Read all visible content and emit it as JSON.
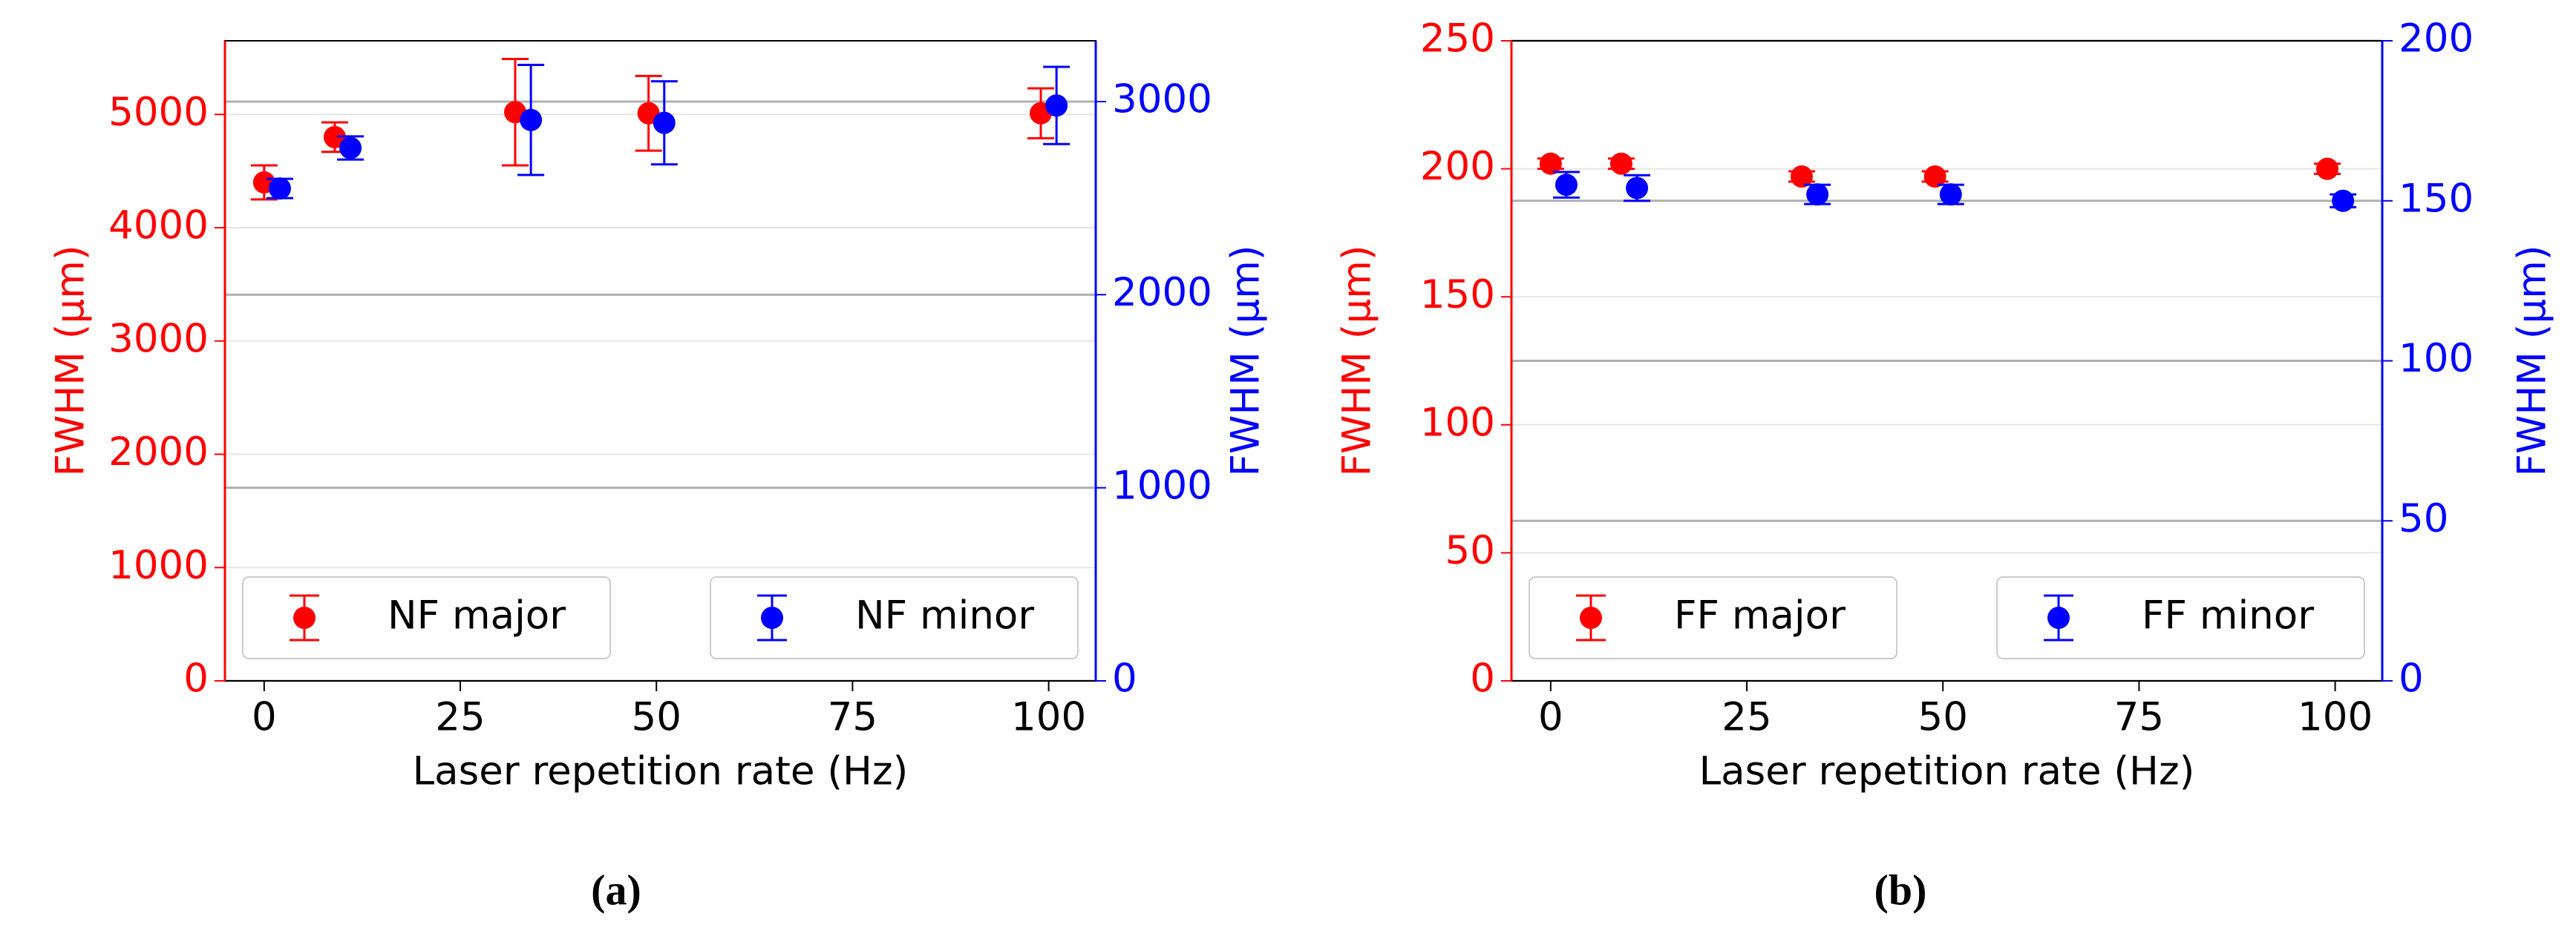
{
  "chart_data": [
    {
      "type": "scatter",
      "caption": "(a)",
      "xlabel": "Laser repetition rate (Hz)",
      "ylabel": "FWHM (μm)",
      "y2label": "FWHM (μm)",
      "xlim": [
        -5,
        106
      ],
      "xticks": [
        0,
        25,
        50,
        75,
        100
      ],
      "ylim": [
        0,
        5650
      ],
      "yticks": [
        0,
        1000,
        2000,
        3000,
        4000,
        5000
      ],
      "ycolor": "#ff0000",
      "y2lim": [
        0,
        3315
      ],
      "y2ticks": [
        0,
        1000,
        2000,
        3000
      ],
      "y2color": "#0000ff",
      "grid": true,
      "series": [
        {
          "name": "NF major",
          "color": "#ff0000",
          "axis": "y",
          "x": [
            0,
            9,
            32,
            49,
            99
          ],
          "values": [
            4400,
            4800,
            5020,
            5010,
            5010
          ],
          "errors": [
            150,
            130,
            470,
            330,
            220
          ]
        },
        {
          "name": "NF minor",
          "color": "#0000ff",
          "axis": "y2",
          "x": [
            2,
            11,
            34,
            51,
            101
          ],
          "values": [
            2550,
            2760,
            2905,
            2890,
            2980
          ],
          "errors": [
            50,
            60,
            285,
            215,
            200
          ]
        }
      ]
    },
    {
      "type": "scatter",
      "caption": "(b)",
      "xlabel": "Laser repetition rate (Hz)",
      "ylabel": "FWHM (μm)",
      "y2label": "FWHM (μm)",
      "xlim": [
        -5,
        106
      ],
      "xticks": [
        0,
        25,
        50,
        75,
        100
      ],
      "ylim": [
        0,
        250
      ],
      "yticks": [
        0,
        50,
        100,
        150,
        200,
        250
      ],
      "ycolor": "#ff0000",
      "y2lim": [
        0,
        200
      ],
      "y2ticks": [
        0,
        50,
        100,
        150,
        200
      ],
      "y2color": "#0000ff",
      "grid": true,
      "series": [
        {
          "name": "FF major",
          "color": "#ff0000",
          "axis": "y",
          "x": [
            0,
            9,
            32,
            49,
            99
          ],
          "values": [
            202,
            202,
            197,
            197,
            200
          ],
          "errors": [
            2,
            2,
            2,
            2,
            2
          ]
        },
        {
          "name": "FF minor",
          "color": "#0000ff",
          "axis": "y2",
          "x": [
            2,
            11,
            34,
            51,
            101
          ],
          "values": [
            155,
            154,
            152,
            152,
            150
          ],
          "errors": [
            4,
            4,
            3,
            3,
            2
          ]
        }
      ]
    }
  ]
}
